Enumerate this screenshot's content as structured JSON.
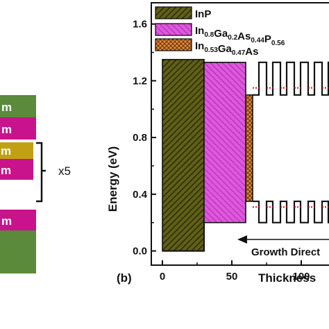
{
  "panel_a": {
    "layer_suffix": "m",
    "repeat_label": "x5",
    "colors": {
      "green": "#5a8a3a",
      "magenta": "#c8138c",
      "gold": "#c2a013"
    }
  },
  "panel_b": {
    "panel_label": "(b)",
    "legend": [
      {
        "base": "InP",
        "parts": []
      },
      {
        "parts": [
          [
            "In",
            "0.8"
          ],
          [
            "Ga",
            "0.2"
          ],
          [
            "As",
            "0.44"
          ],
          [
            "P",
            "0.56"
          ]
        ]
      },
      {
        "parts": [
          [
            "In",
            "0.53"
          ],
          [
            "Ga",
            "0.47"
          ],
          [
            "As",
            ""
          ]
        ]
      }
    ],
    "growth_direction_label": "Growth Direct"
  },
  "chart_data": {
    "type": "area",
    "xlabel": "Thickness",
    "ylabel": "Energy (eV)",
    "xlim": [
      -8,
      120
    ],
    "ylim": [
      -0.1,
      1.75
    ],
    "x_ticks": [
      "0",
      "50",
      "100"
    ],
    "y_ticks": [
      "0.0",
      "0.4",
      "0.8",
      "1.2",
      "1.6"
    ],
    "regions": [
      {
        "material": "InP",
        "x0": 0,
        "x1": 30,
        "conduction": 1.35,
        "valence": 0.0,
        "color": "#4a4a12"
      },
      {
        "material": "InGaAsP",
        "x0": 30,
        "x1": 60,
        "conduction": 1.33,
        "valence": 0.2,
        "color": "#d23ad2"
      },
      {
        "material": "InGaAs",
        "x0": 60,
        "x1": 65,
        "conduction": 1.1,
        "valence": 0.35,
        "color": "#d4762a"
      }
    ],
    "superlattice": {
      "x_start": 60,
      "x_end": 120,
      "period": 10,
      "well_width": 4.5,
      "barrier_width": 5.5,
      "cb_barrier": 1.33,
      "cb_well": 1.1,
      "vb_barrier": 0.2,
      "vb_well": 0.35,
      "cb_level": 1.15,
      "vb_level": 0.31
    }
  }
}
